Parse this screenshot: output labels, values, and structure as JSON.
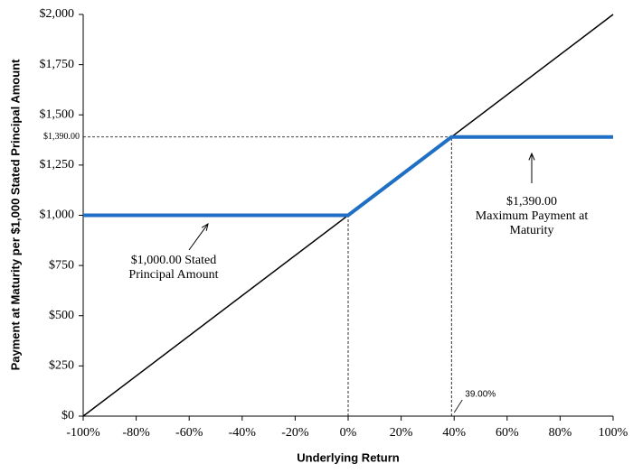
{
  "chart_data": {
    "type": "line",
    "x_label": "Underlying Return",
    "y_label": "Payment at Maturity per $1,000 Stated Principal Amount",
    "series": [
      {
        "color": "#000000",
        "x": [
          -100,
          100
        ],
        "values": [
          0,
          2000
        ]
      },
      {
        "color": "#1f6fc5",
        "x": [
          -100,
          0,
          39,
          100
        ],
        "values": [
          1000,
          1000,
          1390,
          1390
        ]
      }
    ],
    "xlim": [
      -100,
      100
    ],
    "ylim": [
      0,
      2000
    ],
    "xticks": [
      {
        "value": -100,
        "label": "-100%"
      },
      {
        "value": -80,
        "label": "-80%"
      },
      {
        "value": -60,
        "label": "-60%"
      },
      {
        "value": -40,
        "label": "-40%"
      },
      {
        "value": -20,
        "label": "-20%"
      },
      {
        "value": 0,
        "label": "0%"
      },
      {
        "value": 20,
        "label": "20%"
      },
      {
        "value": 40,
        "label": "40%"
      },
      {
        "value": 60,
        "label": "60%"
      },
      {
        "value": 80,
        "label": "80%"
      },
      {
        "value": 100,
        "label": "100%"
      }
    ],
    "yticks": [
      {
        "value": 0,
        "label": "$0"
      },
      {
        "value": 250,
        "label": "$250"
      },
      {
        "value": 500,
        "label": "$500"
      },
      {
        "value": 750,
        "label": "$750"
      },
      {
        "value": 1000,
        "label": "$1,000"
      },
      {
        "value": 1250,
        "label": "$1,250"
      },
      {
        "value": 1500,
        "label": "$1,500"
      },
      {
        "value": 1750,
        "label": "$1,750"
      },
      {
        "value": 2000,
        "label": "$2,000"
      }
    ],
    "y_marker": {
      "value": 1390,
      "label": "$1,390.00"
    },
    "x_marker": {
      "value": 39,
      "label": "39.00%"
    },
    "annotations": [
      {
        "lines": [
          "$1,000.00 Stated",
          "Principal Amount"
        ]
      },
      {
        "lines": [
          "$1,390.00",
          "Maximum Payment at",
          "Maturity"
        ]
      }
    ]
  }
}
